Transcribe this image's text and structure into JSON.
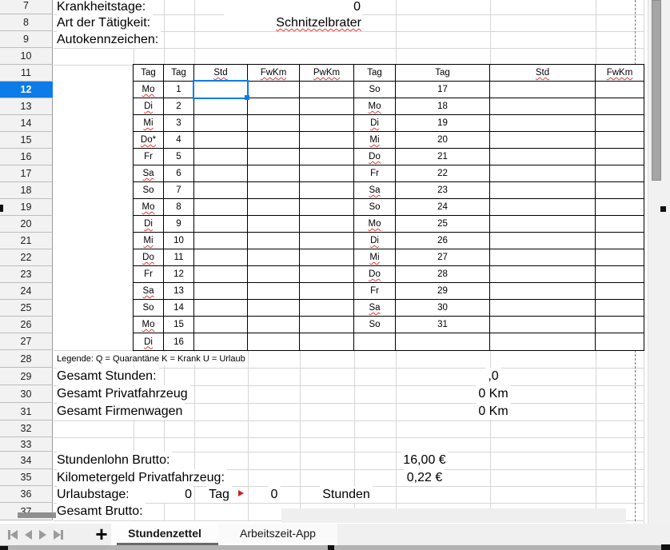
{
  "top_rows": [
    {
      "row": "7",
      "label": "Krankheitstage:",
      "value": "0"
    },
    {
      "row": "8",
      "label": "Art der Tätigkeit:",
      "value": "Schnitzelbrater"
    },
    {
      "row": "9",
      "label": "Autokennzeichen:",
      "value": ""
    }
  ],
  "table": {
    "headers": [
      {
        "t": "Tag",
        "sq": false
      },
      {
        "t": "Tag",
        "sq": false
      },
      {
        "t": "Std",
        "sq": true
      },
      {
        "t": "FwKm",
        "sq": true
      },
      {
        "t": "PwKm",
        "sq": true
      },
      {
        "t": "Tag",
        "sq": false
      },
      {
        "t": "Tag",
        "sq": false
      },
      {
        "t": "Std",
        "sq": true
      },
      {
        "t": "FwKm",
        "sq": true
      }
    ],
    "rows": [
      {
        "l_day": "Mo",
        "l_sq": true,
        "l_num": "1",
        "r_day": "So",
        "r_sq": false,
        "r_num": "17"
      },
      {
        "l_day": "Di",
        "l_sq": true,
        "l_num": "2",
        "r_day": "Mo",
        "r_sq": true,
        "r_num": "18"
      },
      {
        "l_day": "Mi",
        "l_sq": true,
        "l_num": "3",
        "r_day": "Di",
        "r_sq": true,
        "r_num": "19"
      },
      {
        "l_day": "Do*",
        "l_sq": true,
        "l_num": "4",
        "r_day": "Mi",
        "r_sq": true,
        "r_num": "20"
      },
      {
        "l_day": "Fr",
        "l_sq": false,
        "l_num": "5",
        "r_day": "Do",
        "r_sq": true,
        "r_num": "21"
      },
      {
        "l_day": "Sa",
        "l_sq": true,
        "l_num": "6",
        "r_day": "Fr",
        "r_sq": false,
        "r_num": "22"
      },
      {
        "l_day": "So",
        "l_sq": false,
        "l_num": "7",
        "r_day": "Sa",
        "r_sq": true,
        "r_num": "23"
      },
      {
        "l_day": "Mo",
        "l_sq": true,
        "l_num": "8",
        "r_day": "So",
        "r_sq": false,
        "r_num": "24"
      },
      {
        "l_day": "Di",
        "l_sq": true,
        "l_num": "9",
        "r_day": "Mo",
        "r_sq": true,
        "r_num": "25"
      },
      {
        "l_day": "Mi",
        "l_sq": true,
        "l_num": "10",
        "r_day": "Di",
        "r_sq": true,
        "r_num": "26"
      },
      {
        "l_day": "Do",
        "l_sq": true,
        "l_num": "11",
        "r_day": "Mi",
        "r_sq": true,
        "r_num": "27"
      },
      {
        "l_day": "Fr",
        "l_sq": false,
        "l_num": "12",
        "r_day": "Do",
        "r_sq": true,
        "r_num": "28"
      },
      {
        "l_day": "Sa",
        "l_sq": true,
        "l_num": "13",
        "r_day": "Fr",
        "r_sq": false,
        "r_num": "29"
      },
      {
        "l_day": "So",
        "l_sq": false,
        "l_num": "14",
        "r_day": "Sa",
        "r_sq": true,
        "r_num": "30"
      },
      {
        "l_day": "Mo",
        "l_sq": true,
        "l_num": "15",
        "r_day": "So",
        "r_sq": false,
        "r_num": "31"
      },
      {
        "l_day": "Di",
        "l_sq": true,
        "l_num": "16",
        "r_day": "",
        "r_sq": false,
        "r_num": ""
      }
    ]
  },
  "legend": "Legende: Q = Quarantäne K = Krank U = Urlaub",
  "totals": [
    {
      "row": "29",
      "label": "Gesamt Stunden:",
      "value": ",0"
    },
    {
      "row": "30",
      "label": "Gesamt Privatfahrzeug",
      "value": "0 Km"
    },
    {
      "row": "31",
      "label": "Gesamt Firmenwagen",
      "value": "0 Km"
    }
  ],
  "rates": [
    {
      "row": "34",
      "label": "Stundenlohn Brutto:",
      "value": "16,00 €"
    },
    {
      "row": "35",
      "label": "Kilometergeld Privatfahrzeug:",
      "value": "0,22 €"
    }
  ],
  "vacation": {
    "label": "Urlaubstage:",
    "days": "0",
    "unit_days": "Tag",
    "hours": "0",
    "unit_hours": "Stunden"
  },
  "gross_label": "Gesamt Brutto:",
  "row_numbers": [
    "7",
    "8",
    "9",
    "10",
    "11",
    "12",
    "13",
    "14",
    "15",
    "16",
    "17",
    "18",
    "19",
    "20",
    "21",
    "22",
    "23",
    "24",
    "25",
    "26",
    "27",
    "28",
    "29",
    "30",
    "31",
    "32",
    "33",
    "34",
    "35",
    "36",
    "37"
  ],
  "selected_row": "12",
  "tabs": {
    "active": "Stundenzettel",
    "inactive": "Arbeitszeit-App"
  },
  "colors": {
    "selection_blue": "#0d7ce8",
    "squiggle_red": "#e23a3a",
    "page_break_gray": "#7a7a7a"
  }
}
